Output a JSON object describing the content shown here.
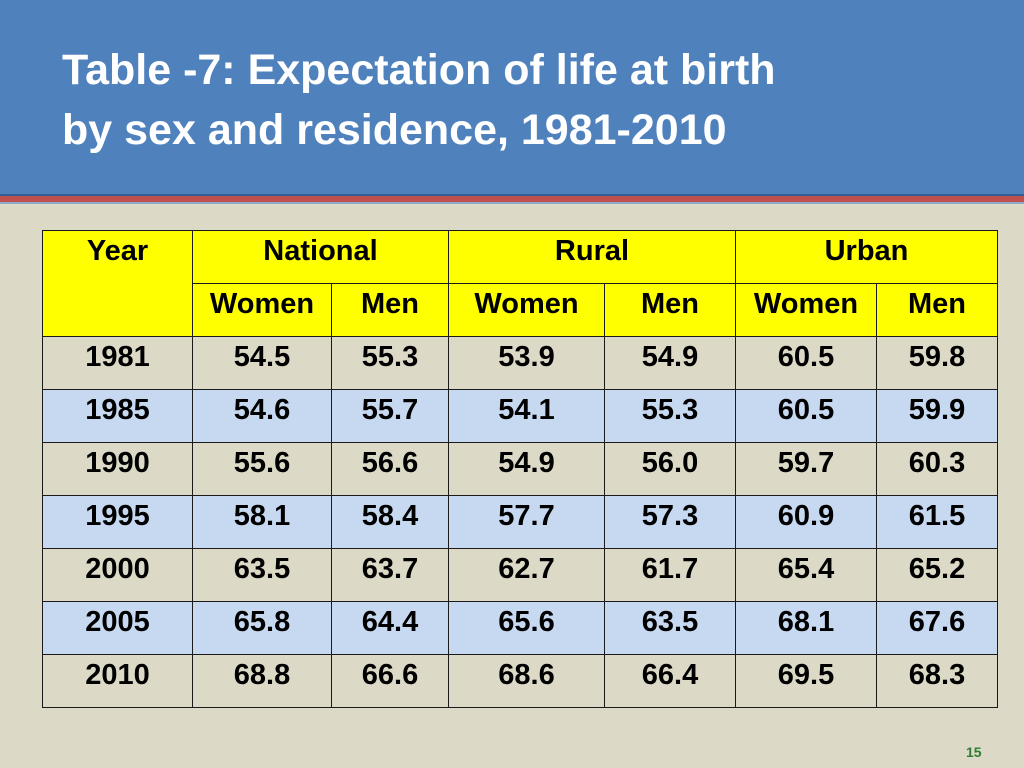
{
  "slide": {
    "title_line1": "Table -7: Expectation of life at birth",
    "title_line2": "by sex and residence, 1981-2010",
    "page_number": "15"
  },
  "chart_data": {
    "type": "table",
    "title": "Table -7: Expectation of life at birth by sex and residence, 1981-2010",
    "header": {
      "year": "Year",
      "groups": [
        "National",
        "Rural",
        "Urban"
      ],
      "subheaders": [
        "Women",
        "Men",
        "Women",
        "Men",
        "Women",
        "Men"
      ]
    },
    "rows": [
      {
        "year": "1981",
        "values": [
          "54.5",
          "55.3",
          "53.9",
          "54.9",
          "60.5",
          "59.8"
        ]
      },
      {
        "year": "1985",
        "values": [
          "54.6",
          "55.7",
          "54.1",
          "55.3",
          "60.5",
          "59.9"
        ]
      },
      {
        "year": "1990",
        "values": [
          "55.6",
          "56.6",
          "54.9",
          "56.0",
          "59.7",
          "60.3"
        ]
      },
      {
        "year": "1995",
        "values": [
          "58.1",
          "58.4",
          "57.7",
          "57.3",
          "60.9",
          "61.5"
        ]
      },
      {
        "year": "2000",
        "values": [
          "63.5",
          "63.7",
          "62.7",
          "61.7",
          "65.4",
          "65.2"
        ]
      },
      {
        "year": "2005",
        "values": [
          "65.8",
          "64.4",
          "65.6",
          "63.5",
          "68.1",
          "67.6"
        ]
      },
      {
        "year": "2010",
        "values": [
          "68.8",
          "66.6",
          "68.6",
          "66.4",
          "69.5",
          "68.3"
        ]
      }
    ]
  },
  "colors": {
    "header_bg": "#4f81bd",
    "accent_stripe": "#c0504d",
    "table_header": "#ffff00",
    "row_odd": "#dcd9c6",
    "row_even": "#c6d9f1"
  }
}
